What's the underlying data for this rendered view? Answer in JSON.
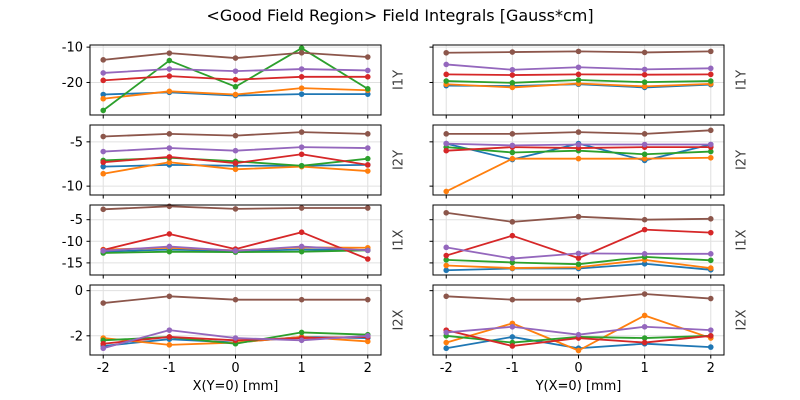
{
  "title": "<Good Field Region> Field Integrals [Gauss*cm]",
  "colors": {
    "background": "#ffffff",
    "grid": "#e0e0e0",
    "spine": "#000000",
    "tick_text": "#000000",
    "row_label": "#3d3d3d"
  },
  "chart_data": {
    "type": "line",
    "x": [
      -2,
      -1,
      0,
      1,
      2
    ],
    "xlim": [
      -2.2,
      2.2
    ],
    "series_colors": [
      "#1f77b4",
      "#ff7f0e",
      "#2ca02c",
      "#d62728",
      "#9467bd",
      "#8c564b"
    ],
    "series_names": [
      "series-blue",
      "series-orange",
      "series-green",
      "series-red",
      "series-purple",
      "series-brown"
    ],
    "legend": "none",
    "grid": "on",
    "columns": [
      {
        "xlabel": "X(Y=0) [mm]",
        "xticks": [
          "-2",
          "-1",
          "0",
          "1",
          "2"
        ]
      },
      {
        "xlabel": "Y(X=0) [mm]",
        "xticks": [
          "-2",
          "-1",
          "0",
          "1",
          "2"
        ]
      }
    ],
    "rows": [
      {
        "label": "I1Y",
        "yticks": [
          -10,
          -20
        ],
        "ylim": [
          -29.2,
          -9.4
        ]
      },
      {
        "label": "I2Y",
        "yticks": [
          -5,
          -10
        ],
        "ylim": [
          -11.0,
          -3.1
        ]
      },
      {
        "label": "I1X",
        "yticks": [
          -5,
          -10,
          -15
        ],
        "ylim": [
          -17.8,
          -1.6
        ]
      },
      {
        "label": "I2X",
        "yticks": [
          0,
          -2
        ],
        "ylim": [
          -2.85,
          0.25
        ]
      }
    ],
    "subplots": [
      {
        "row": 0,
        "col": 0,
        "series": [
          [
            -23.4,
            -22.8,
            -23.7,
            -23.3,
            -23.3
          ],
          [
            -24.6,
            -22.5,
            -23.4,
            -21.6,
            -22.2
          ],
          [
            -27.9,
            -13.8,
            -21.2,
            -10.3,
            -21.8
          ],
          [
            -19.4,
            -18.2,
            -19.2,
            -18.4,
            -18.4
          ],
          [
            -17.3,
            -16.2,
            -16.8,
            -16.2,
            -16.6
          ],
          [
            -13.6,
            -11.7,
            -13.1,
            -11.6,
            -12.8
          ]
        ]
      },
      {
        "row": 0,
        "col": 1,
        "series": [
          [
            -20.9,
            -21.0,
            -20.5,
            -21.4,
            -20.6
          ],
          [
            -20.5,
            -21.4,
            -20.3,
            -21.1,
            -20.4
          ],
          [
            -19.6,
            -20.1,
            -19.3,
            -19.9,
            -19.6
          ],
          [
            -17.7,
            -17.9,
            -17.7,
            -17.8,
            -17.7
          ],
          [
            -14.9,
            -16.4,
            -15.7,
            -16.3,
            -16.0
          ],
          [
            -11.6,
            -11.4,
            -11.2,
            -11.5,
            -11.2
          ]
        ]
      },
      {
        "row": 1,
        "col": 0,
        "series": [
          [
            -7.8,
            -7.6,
            -7.7,
            -7.7,
            -7.6
          ],
          [
            -8.6,
            -7.3,
            -8.1,
            -7.8,
            -8.3
          ],
          [
            -7.1,
            -6.8,
            -7.2,
            -7.7,
            -6.9
          ],
          [
            -7.3,
            -6.7,
            -7.4,
            -6.4,
            -7.6
          ],
          [
            -6.1,
            -5.7,
            -6.0,
            -5.6,
            -5.7
          ],
          [
            -4.4,
            -4.1,
            -4.3,
            -3.9,
            -4.1
          ]
        ]
      },
      {
        "row": 1,
        "col": 1,
        "series": [
          [
            -5.2,
            -7.0,
            -5.2,
            -7.1,
            -5.3
          ],
          [
            -10.6,
            -6.9,
            -6.9,
            -6.9,
            -6.8
          ],
          [
            -5.6,
            -6.2,
            -6.0,
            -6.4,
            -6.1
          ],
          [
            -6.0,
            -5.6,
            -5.7,
            -5.6,
            -5.6
          ],
          [
            -5.2,
            -5.4,
            -5.3,
            -5.3,
            -5.3
          ],
          [
            -4.1,
            -4.1,
            -3.9,
            -4.1,
            -3.7
          ]
        ]
      },
      {
        "row": 2,
        "col": 0,
        "series": [
          [
            -12.4,
            -11.9,
            -12.3,
            -11.9,
            -12.0
          ],
          [
            -11.9,
            -11.5,
            -12.1,
            -11.4,
            -11.5
          ],
          [
            -12.7,
            -12.4,
            -12.5,
            -12.4,
            -12.1
          ],
          [
            -12.0,
            -8.3,
            -11.8,
            -7.9,
            -14.1
          ],
          [
            -12.2,
            -11.2,
            -12.2,
            -11.2,
            -12.1
          ],
          [
            -2.6,
            -1.9,
            -2.5,
            -2.3,
            -2.3
          ]
        ]
      },
      {
        "row": 2,
        "col": 1,
        "series": [
          [
            -16.7,
            -16.3,
            -16.3,
            -15.2,
            -16.6
          ],
          [
            -15.6,
            -16.2,
            -16.0,
            -14.3,
            -16.2
          ],
          [
            -14.3,
            -14.9,
            -15.3,
            -13.6,
            -14.4
          ],
          [
            -13.3,
            -8.7,
            -13.9,
            -7.3,
            -8.0
          ],
          [
            -11.4,
            -14.0,
            -12.8,
            -12.9,
            -12.9
          ],
          [
            -3.4,
            -5.5,
            -4.3,
            -5.0,
            -4.8
          ]
        ]
      },
      {
        "row": 3,
        "col": 0,
        "series": [
          [
            -2.45,
            -2.15,
            -2.3,
            -2.05,
            -2.1
          ],
          [
            -2.1,
            -2.4,
            -2.3,
            -2.05,
            -2.25
          ],
          [
            -2.2,
            -2.05,
            -2.35,
            -1.85,
            -1.95
          ],
          [
            -2.35,
            -2.05,
            -2.2,
            -2.1,
            -2.05
          ],
          [
            -2.55,
            -1.75,
            -2.1,
            -2.2,
            -2.0
          ],
          [
            -0.55,
            -0.25,
            -0.4,
            -0.4,
            -0.4
          ]
        ]
      },
      {
        "row": 3,
        "col": 1,
        "series": [
          [
            -2.55,
            -2.05,
            -2.55,
            -2.35,
            -2.5
          ],
          [
            -2.3,
            -1.45,
            -2.65,
            -1.1,
            -2.1
          ],
          [
            -2.0,
            -2.3,
            -2.05,
            -2.1,
            -2.0
          ],
          [
            -1.75,
            -2.45,
            -2.1,
            -2.3,
            -2.0
          ],
          [
            -1.85,
            -1.6,
            -1.95,
            -1.6,
            -1.75
          ],
          [
            -0.25,
            -0.4,
            -0.4,
            -0.15,
            -0.35
          ]
        ]
      }
    ]
  }
}
